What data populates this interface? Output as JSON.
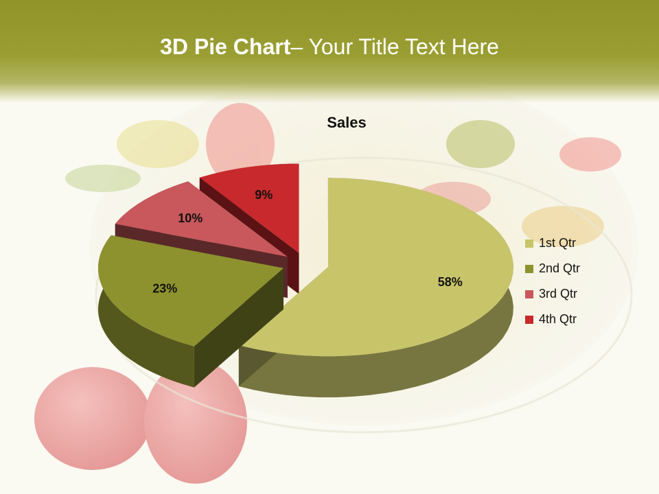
{
  "slide": {
    "title_bold": "3D Pie Chart",
    "title_rest": "– Your Title Text Here"
  },
  "chart_data": {
    "type": "pie",
    "title": "Sales",
    "categories": [
      "1st Qtr",
      "2nd Qtr",
      "3rd Qtr",
      "4th Qtr"
    ],
    "values": [
      58,
      23,
      10,
      9
    ],
    "labels": [
      "58%",
      "23%",
      "10%",
      "9%"
    ],
    "colors": [
      "#c8c46a",
      "#8d922e",
      "#c8585b",
      "#c8292c"
    ],
    "legend_position": "right",
    "exploded": true
  }
}
